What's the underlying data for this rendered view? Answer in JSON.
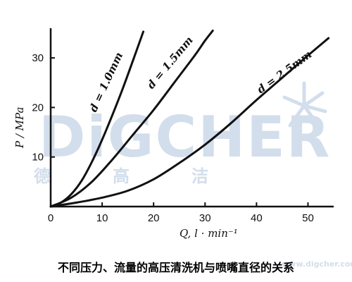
{
  "chart_data": {
    "type": "line",
    "caption": "不同压力、流量的高压清洗机与喷嘴直径的关系",
    "xlabel": "Q, l · min⁻¹",
    "ylabel": "P / MPa",
    "xlim": [
      0,
      55
    ],
    "ylim": [
      0,
      36
    ],
    "xticks": [
      "0",
      "10",
      "20",
      "30",
      "40",
      "50"
    ],
    "yticks": [
      "10",
      "20",
      "30"
    ],
    "grid": false,
    "series": [
      {
        "name": "d = 1.0mm",
        "points": [
          [
            0,
            0
          ],
          [
            2,
            0.8
          ],
          [
            4,
            2.5
          ],
          [
            6,
            5.2
          ],
          [
            8,
            9.0
          ],
          [
            10,
            13.5
          ],
          [
            12,
            18.5
          ],
          [
            14,
            23.8
          ],
          [
            16,
            29.5
          ],
          [
            18,
            35.3
          ]
        ]
      },
      {
        "name": "d = 1.5mm",
        "points": [
          [
            0,
            0
          ],
          [
            4,
            1.8
          ],
          [
            8,
            5.0
          ],
          [
            12,
            9.5
          ],
          [
            16,
            14.5
          ],
          [
            20,
            19.5
          ],
          [
            24,
            25.0
          ],
          [
            28,
            30.5
          ],
          [
            30,
            33.5
          ],
          [
            31.5,
            35.5
          ]
        ]
      },
      {
        "name": "d = 2.5mm",
        "points": [
          [
            0,
            0
          ],
          [
            5,
            0.8
          ],
          [
            10,
            1.8
          ],
          [
            15,
            3.2
          ],
          [
            20,
            5.5
          ],
          [
            25,
            8.8
          ],
          [
            30,
            12.5
          ],
          [
            35,
            16.8
          ],
          [
            40,
            21.5
          ],
          [
            45,
            26.0
          ],
          [
            50,
            30.5
          ],
          [
            54,
            34.0
          ]
        ]
      }
    ]
  },
  "watermark": {
    "brand": "DiGCHER",
    "chinese": [
      "德",
      "高",
      "洁"
    ],
    "url": "www.digcher.com"
  }
}
